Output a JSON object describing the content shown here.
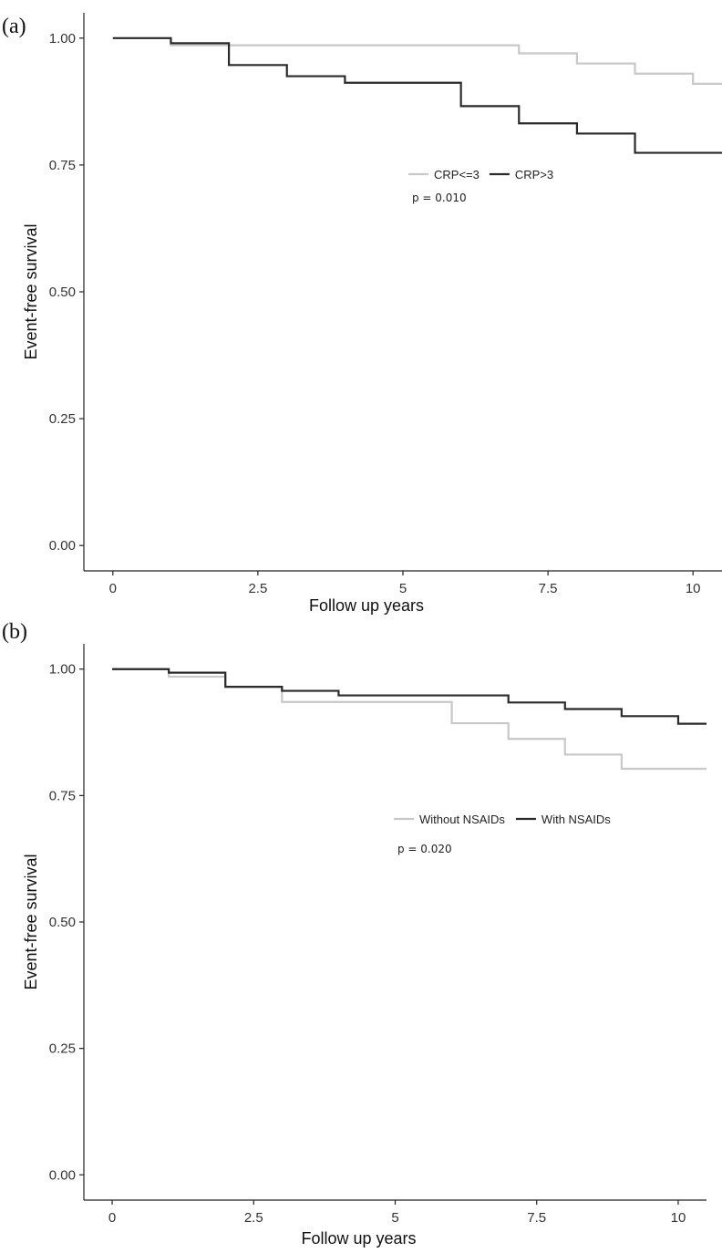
{
  "colors": {
    "light_series": "#c8c8c8",
    "dark_series": "#2a2a2a",
    "axis": "#222222"
  },
  "chart_data": [
    {
      "type": "line",
      "step": true,
      "panel_label": "(a)",
      "xlabel": "Follow up years",
      "ylabel": "Event-free survival",
      "xlim": [
        -0.5,
        10.5
      ],
      "ylim": [
        -0.05,
        1.05
      ],
      "xticks": [
        0,
        2.5,
        5,
        7.5,
        10
      ],
      "xtick_labels": [
        "0",
        "2.5",
        "5",
        "7.5",
        "10"
      ],
      "yticks": [
        0,
        0.25,
        0.5,
        0.75,
        1.0
      ],
      "ytick_labels": [
        "0.00",
        "0.25",
        "0.50",
        "0.75",
        "1.00"
      ],
      "legend_position": "center-right",
      "annotation": "p = 0.010",
      "series": [
        {
          "name": "CRP<=3",
          "color": "light",
          "x": [
            0,
            1,
            7,
            8,
            9,
            10,
            10.5
          ],
          "y": [
            1.0,
            0.986,
            0.97,
            0.95,
            0.93,
            0.91,
            0.91
          ]
        },
        {
          "name": "CRP>3",
          "color": "dark",
          "x": [
            0,
            1,
            2,
            3,
            4,
            6,
            7,
            8,
            9,
            10.5
          ],
          "y": [
            1.0,
            0.99,
            0.947,
            0.925,
            0.912,
            0.866,
            0.832,
            0.812,
            0.774,
            0.774
          ]
        }
      ]
    },
    {
      "type": "line",
      "step": true,
      "panel_label": "(b)",
      "xlabel": "Follow up years",
      "ylabel": "Event-free survival",
      "xlim": [
        -0.5,
        10.5
      ],
      "ylim": [
        -0.05,
        1.05
      ],
      "xticks": [
        0,
        2.5,
        5,
        7.5,
        10
      ],
      "xtick_labels": [
        "0",
        "2.5",
        "5",
        "7.5",
        "10"
      ],
      "yticks": [
        0,
        0.25,
        0.5,
        0.75,
        1.0
      ],
      "ytick_labels": [
        "0.00",
        "0.25",
        "0.50",
        "0.75",
        "1.00"
      ],
      "legend_position": "center-right",
      "annotation": "p = 0.020",
      "series": [
        {
          "name": "Without NSAIDs",
          "color": "light",
          "x": [
            0,
            1,
            2,
            3,
            6,
            7,
            8,
            9,
            10.5
          ],
          "y": [
            1.0,
            0.985,
            0.965,
            0.935,
            0.893,
            0.862,
            0.831,
            0.803,
            0.803
          ]
        },
        {
          "name": "With NSAIDs",
          "color": "dark",
          "x": [
            0,
            1,
            2,
            3,
            4,
            7,
            8,
            9,
            10,
            10.5
          ],
          "y": [
            1.0,
            0.993,
            0.965,
            0.957,
            0.948,
            0.934,
            0.921,
            0.907,
            0.892,
            0.892
          ]
        }
      ]
    }
  ]
}
